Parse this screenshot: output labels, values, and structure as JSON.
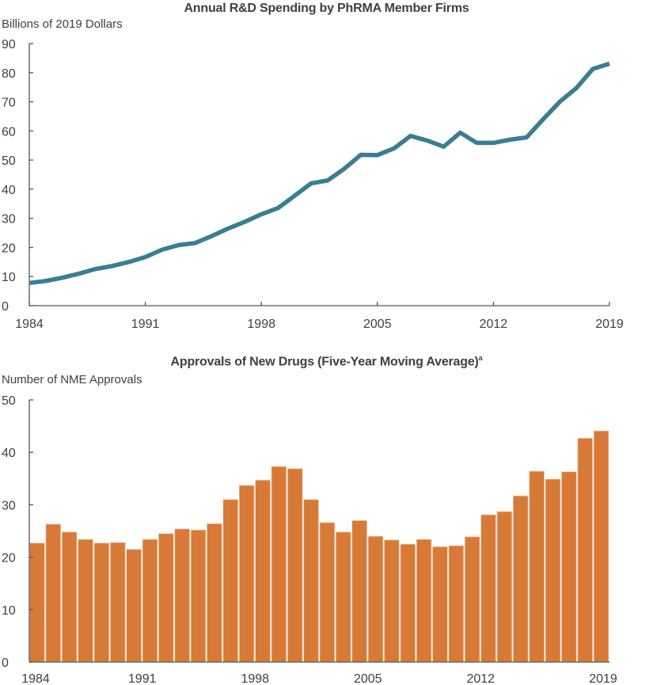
{
  "colors": {
    "line": "#3a7d94",
    "bar": "#d77a38",
    "bar_edge": "#f4d2b6",
    "axis": "#555555",
    "text": "#404040"
  },
  "chart_data": [
    {
      "type": "line",
      "title": "Annual R&D Spending by PhRMA Member Firms",
      "xlabel": "",
      "ylabel": "Billions of 2019 Dollars",
      "ylim": [
        0,
        90
      ],
      "yticks": [
        0,
        10,
        20,
        30,
        40,
        50,
        60,
        70,
        80,
        90
      ],
      "xlim": [
        1984,
        2019
      ],
      "xticks": [
        1984,
        1991,
        1998,
        2005,
        2012,
        2019
      ],
      "grid": false,
      "x": [
        1984,
        1985,
        1986,
        1987,
        1988,
        1989,
        1990,
        1991,
        1992,
        1993,
        1994,
        1995,
        1996,
        1997,
        1998,
        1999,
        2000,
        2001,
        2002,
        2003,
        2004,
        2005,
        2006,
        2007,
        2008,
        2009,
        2010,
        2011,
        2012,
        2013,
        2014,
        2015,
        2016,
        2017,
        2018,
        2019
      ],
      "series": [
        {
          "name": "R&D Spending",
          "values": [
            7.8,
            8.5,
            9.6,
            11.0,
            12.6,
            13.6,
            15.0,
            16.7,
            19.2,
            20.8,
            21.5,
            23.9,
            26.5,
            28.8,
            31.4,
            33.5,
            37.7,
            42.0,
            43.0,
            47.0,
            51.8,
            51.7,
            54.0,
            58.3,
            56.7,
            54.6,
            59.4,
            55.9,
            55.9,
            57.0,
            57.8,
            64.0,
            70.0,
            74.7,
            81.3,
            83.1
          ]
        }
      ]
    },
    {
      "type": "bar",
      "title": "Approvals of New Drugs (Five-Year Moving Average)",
      "title_footnote": "a",
      "xlabel": "",
      "ylabel": "Number of NME Approvals",
      "ylim": [
        0,
        50
      ],
      "yticks": [
        0,
        10,
        20,
        30,
        40,
        50
      ],
      "xticks": [
        1984,
        1991,
        1998,
        2005,
        2012,
        2019
      ],
      "grid": false,
      "categories": [
        1984,
        1985,
        1986,
        1987,
        1988,
        1989,
        1990,
        1991,
        1992,
        1993,
        1994,
        1995,
        1996,
        1997,
        1998,
        1999,
        2000,
        2001,
        2002,
        2003,
        2004,
        2005,
        2006,
        2007,
        2008,
        2009,
        2010,
        2011,
        2012,
        2013,
        2014,
        2015,
        2016,
        2017,
        2018,
        2019
      ],
      "series": [
        {
          "name": "NME Approvals (5-yr avg)",
          "values": [
            22.7,
            26.3,
            24.8,
            23.4,
            22.7,
            22.8,
            21.5,
            23.4,
            24.5,
            25.4,
            25.2,
            26.4,
            31.0,
            33.7,
            34.7,
            37.3,
            36.9,
            31.0,
            26.6,
            24.8,
            27.0,
            24.0,
            23.3,
            22.5,
            23.4,
            22.0,
            22.2,
            23.9,
            28.1,
            28.7,
            31.7,
            36.4,
            34.9,
            36.3,
            42.7,
            44.1
          ]
        }
      ]
    }
  ]
}
